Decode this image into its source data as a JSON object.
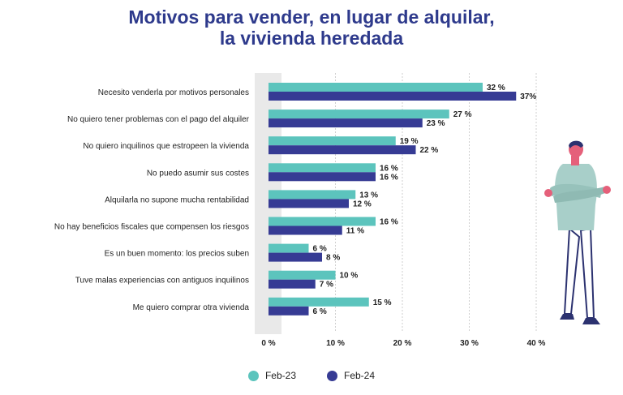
{
  "title_line1": "Motivos para vender, en lugar de alquilar,",
  "title_line2": "la vivienda heredada",
  "colors": {
    "feb23": "#5cc4bd",
    "feb24": "#363b94",
    "title": "#2e3a8c",
    "highlight": "#e9e9e9"
  },
  "chart_data": {
    "type": "bar",
    "orientation": "horizontal",
    "title": "Motivos para vender, en lugar de alquilar, la vivienda heredada",
    "categories": [
      "Necesito venderla por motivos personales",
      "No quiero tener problemas con el pago del alquiler",
      "No quiero inquilinos que estropeen la vivienda",
      "No puedo asumir sus costes",
      "Alquilarla no supone mucha rentabilidad",
      "No hay beneficios fiscales que compensen los riesgos",
      "Es un buen momento: los precios suben",
      "Tuve malas experiencias con antiguos inquilinos",
      "Me quiero comprar otra vivienda"
    ],
    "series": [
      {
        "name": "Feb-23",
        "values": [
          32,
          27,
          19,
          16,
          13,
          16,
          6,
          10,
          15
        ],
        "labels": [
          "32 %",
          "27 %",
          "19 %",
          "16 %",
          "13 %",
          "16 %",
          "6 %",
          "10 %",
          "15 %"
        ]
      },
      {
        "name": "Feb-24",
        "values": [
          37,
          23,
          22,
          16,
          12,
          11,
          8,
          7,
          6
        ],
        "labels": [
          "37%",
          "23 %",
          "22 %",
          "16 %",
          "12 %",
          "11 %",
          "8 %",
          "7 %",
          "6 %"
        ]
      }
    ],
    "xlim": [
      0,
      40
    ],
    "x_ticks": [
      0,
      10,
      20,
      30,
      40
    ],
    "x_tick_labels": [
      "0 %",
      "10 %",
      "20 %",
      "30 %",
      "40 %"
    ],
    "grid": "vertical",
    "legend_position": "bottom"
  }
}
